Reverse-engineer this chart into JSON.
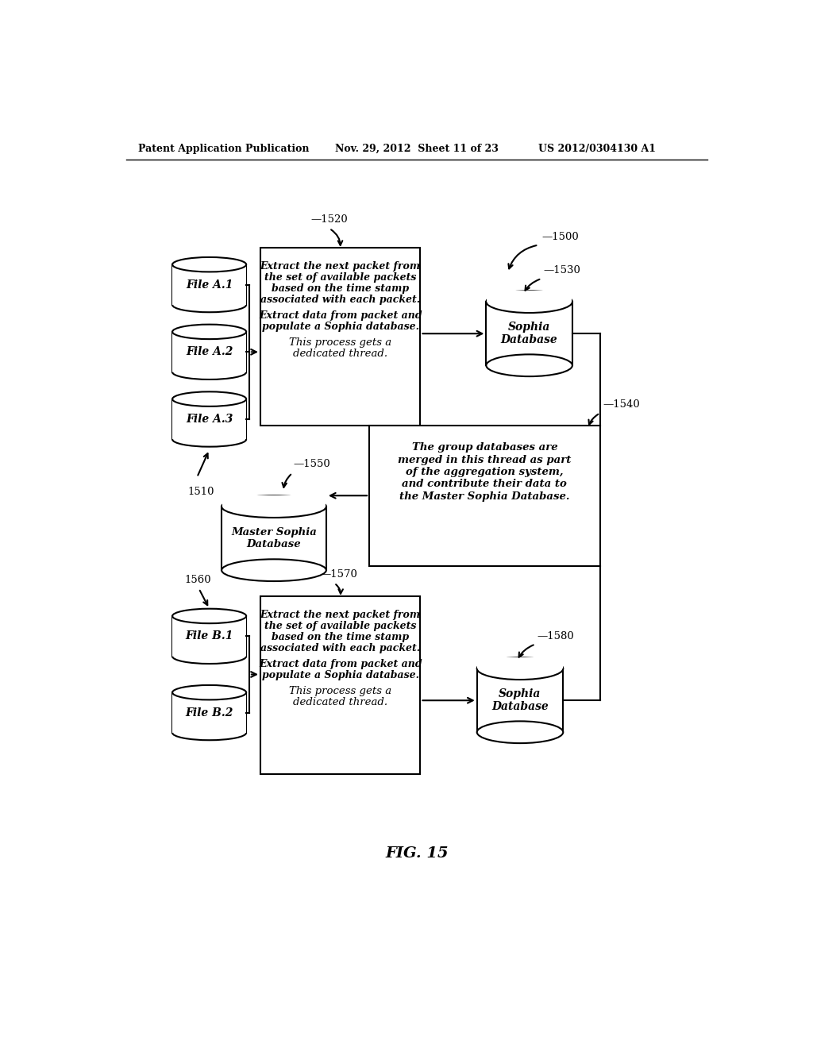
{
  "header_left": "Patent Application Publication",
  "header_mid": "Nov. 29, 2012  Sheet 11 of 23",
  "header_right": "US 2012/0304130 A1",
  "fig_label": "FIG. 15",
  "bg_color": "#ffffff",
  "label_1500": "—1500",
  "label_1510": "1510",
  "label_1520": "—1520",
  "label_1530": "—1530",
  "label_1540": "—1540",
  "label_1550": "—1550",
  "label_1560": "1560",
  "label_1570": "—1570",
  "label_1580": "—1580",
  "file_a1": "File A.1",
  "file_a2": "File A.2",
  "file_a3": "File A.3",
  "file_b1": "File B.1",
  "file_b2": "File B.2",
  "box1520_text_1": "Extract the next packet from",
  "box1520_text_2": "the set of available packets",
  "box1520_text_3": "based on the time stamp",
  "box1520_text_4": "associated with each packet.",
  "box1520_text_5": "Extract data from packet and",
  "box1520_text_6": "populate a Sophia database.",
  "box1520_text_7": "This process gets a",
  "box1520_text_8": "dedicated thread.",
  "box1540_text_1": "The group databases are",
  "box1540_text_2": "merged in this thread as part",
  "box1540_text_3": "of the aggregation system,",
  "box1540_text_4": "and contribute their data to",
  "box1540_text_5": "the Master Sophia Database.",
  "box1570_text_1": "Extract the next packet from",
  "box1570_text_2": "the set of available packets",
  "box1570_text_3": "based on the time stamp",
  "box1570_text_4": "associated with each packet.",
  "box1570_text_5": "Extract data from packet and",
  "box1570_text_6": "populate a Sophia database.",
  "box1570_text_7": "This process gets a",
  "box1570_text_8": "dedicated thread.",
  "sophia_db": "Sophia\nDatabase",
  "master_sophia": "Master Sophia\nDatabase"
}
